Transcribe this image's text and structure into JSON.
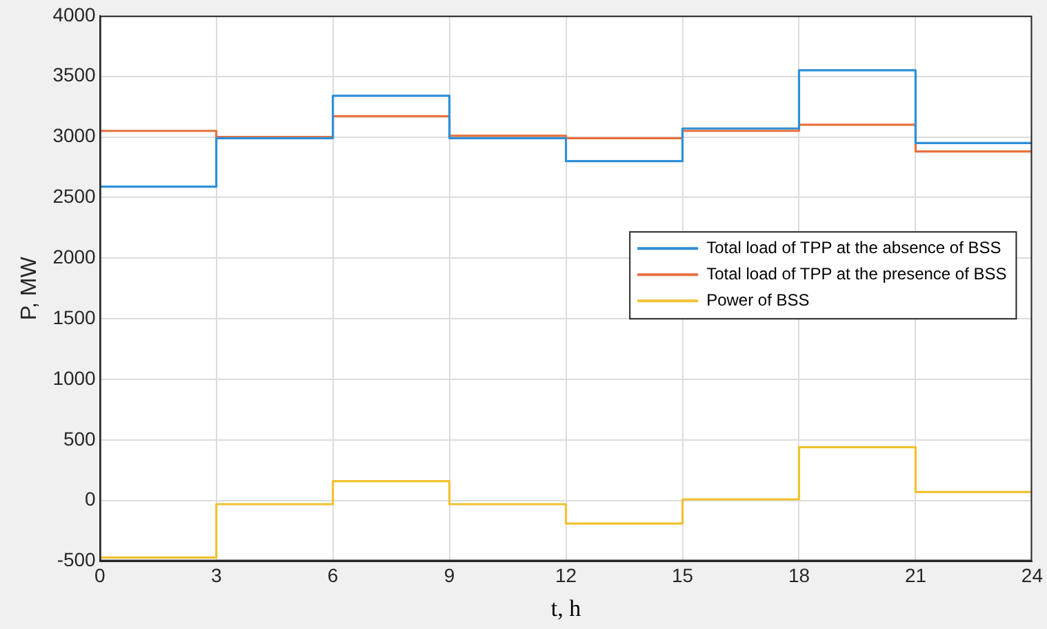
{
  "chart_data": {
    "type": "step",
    "xlabel": "t, h",
    "ylabel": "P, MW",
    "x": [
      0,
      3,
      6,
      9,
      12,
      15,
      18,
      21,
      24
    ],
    "series": [
      {
        "name": "Total load of TPP at the absence of BSS",
        "color": "#2f8fd8",
        "values": [
          2590,
          2990,
          3340,
          2990,
          2800,
          3070,
          3550,
          2950,
          2950
        ]
      },
      {
        "name": "Total load of TPP at the presence of BSS",
        "color": "#e8703e",
        "values": [
          3050,
          3000,
          3170,
          3010,
          2990,
          3050,
          3100,
          2880,
          2880
        ]
      },
      {
        "name": "Power of BSS",
        "color": "#f2c131",
        "values": [
          -470,
          -30,
          160,
          -30,
          -190,
          10,
          440,
          70,
          70
        ]
      }
    ],
    "xlim": [
      0,
      24
    ],
    "xticks": [
      0,
      3,
      6,
      9,
      12,
      15,
      18,
      21,
      24
    ],
    "ylim": [
      -500,
      4000
    ],
    "yticks": [
      -500,
      0,
      500,
      1000,
      1500,
      2000,
      2500,
      3000,
      3500,
      4000
    ],
    "grid": true,
    "legend": "right",
    "marker": "none",
    "line_style": "solid"
  }
}
